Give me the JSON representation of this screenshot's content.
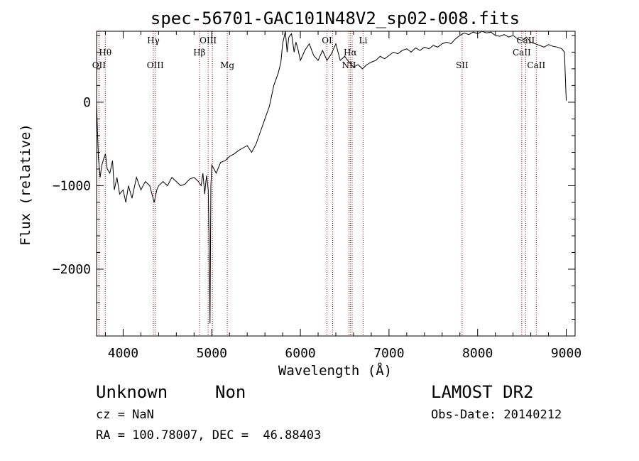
{
  "chart_data": {
    "type": "line",
    "title": "spec-56701-GAC101N48V2_sp02-008.fits",
    "xlabel": "Wavelength (Å)",
    "ylabel": "Flux (relative)",
    "xlim": [
      3700,
      9100
    ],
    "ylim": [
      -2800,
      850
    ],
    "xticks": [
      4000,
      5000,
      6000,
      7000,
      8000,
      9000
    ],
    "yticks": [
      -2000,
      -1000,
      0
    ],
    "ytick_labels": [
      "−2000",
      "−1000",
      "0"
    ],
    "grid": false,
    "series": [
      {
        "x": [
          3700,
          3720,
          3740,
          3760,
          3780,
          3800,
          3820,
          3850,
          3880,
          3900,
          3930,
          3960,
          4000,
          4030,
          4060,
          4100,
          4150,
          4200,
          4250,
          4300,
          4350,
          4380,
          4400,
          4450,
          4500,
          4550,
          4600,
          4650,
          4700,
          4750,
          4800,
          4850,
          4880,
          4900,
          4920,
          4940,
          4950,
          4960,
          4970,
          4980,
          4990,
          5000,
          5050,
          5100,
          5150,
          5200,
          5250,
          5300,
          5350,
          5400,
          5450,
          5500,
          5550,
          5600,
          5650,
          5700,
          5750,
          5780,
          5800,
          5830,
          5850,
          5870,
          5900,
          5930,
          5950,
          5970,
          6000,
          6050,
          6100,
          6150,
          6200,
          6250,
          6300,
          6350,
          6400,
          6450,
          6500,
          6550,
          6600,
          6650,
          6700,
          6750,
          6800,
          6850,
          6900,
          6950,
          7000,
          7050,
          7100,
          7150,
          7200,
          7250,
          7300,
          7350,
          7400,
          7450,
          7500,
          7550,
          7600,
          7650,
          7700,
          7750,
          7800,
          7850,
          7900,
          7950,
          8000,
          8050,
          8100,
          8150,
          8200,
          8250,
          8300,
          8350,
          8400,
          8450,
          8500,
          8550,
          8600,
          8650,
          8700,
          8750,
          8800,
          8850,
          8900,
          8950,
          8980,
          9000
        ],
        "y": [
          -10,
          -650,
          -900,
          -750,
          -680,
          -620,
          -800,
          -850,
          -700,
          -1050,
          -900,
          -1100,
          -1050,
          -1200,
          -1000,
          -1150,
          -900,
          -1050,
          -950,
          -1000,
          -1200,
          -1050,
          -1000,
          -950,
          -1000,
          -900,
          -950,
          -1000,
          -980,
          -920,
          -900,
          -950,
          -1000,
          -850,
          -1100,
          -880,
          -950,
          -1050,
          -1700,
          -2650,
          -1000,
          -750,
          -850,
          -720,
          -700,
          -650,
          -620,
          -580,
          -550,
          -520,
          -600,
          -500,
          -350,
          -200,
          -50,
          200,
          350,
          480,
          700,
          850,
          600,
          780,
          820,
          600,
          720,
          650,
          500,
          620,
          700,
          560,
          500,
          620,
          500,
          580,
          700,
          500,
          550,
          480,
          420,
          450,
          400,
          450,
          480,
          500,
          550,
          520,
          560,
          600,
          580,
          620,
          640,
          600,
          650,
          620,
          660,
          640,
          680,
          660,
          700,
          720,
          700,
          760,
          800,
          830,
          810,
          840,
          820,
          850,
          830,
          840,
          800,
          790,
          810,
          780,
          800,
          760,
          740,
          780,
          720,
          700,
          680,
          660,
          690,
          670,
          660,
          640,
          600,
          20
        ]
      }
    ],
    "annotations": [
      {
        "label": "OII",
        "wavelength": 3727,
        "row": "lower"
      },
      {
        "label": "Hθ",
        "wavelength": 3798,
        "row": "upper"
      },
      {
        "label": "OIII",
        "wavelength": 4363,
        "row": "lower"
      },
      {
        "label": "Hγ",
        "wavelength": 4341,
        "row": "top"
      },
      {
        "label": "Hβ",
        "wavelength": 4861,
        "row": "upper"
      },
      {
        "label": "OIII",
        "wavelength": 4959,
        "row": "top"
      },
      {
        "label": "OIII",
        "wavelength": 5007,
        "row": "none"
      },
      {
        "label": "Mg",
        "wavelength": 5175,
        "row": "lower"
      },
      {
        "label": "OI",
        "wavelength": 6300,
        "row": "top"
      },
      {
        "label": "OI",
        "wavelength": 6364,
        "row": "none"
      },
      {
        "label": "NII",
        "wavelength": 6548,
        "row": "lower"
      },
      {
        "label": "Hα",
        "wavelength": 6563,
        "row": "upper"
      },
      {
        "label": "NII",
        "wavelength": 6584,
        "row": "none"
      },
      {
        "label": "Li",
        "wavelength": 6708,
        "row": "top"
      },
      {
        "label": "SII",
        "wavelength": 7825,
        "row": "lower"
      },
      {
        "label": "CaII",
        "wavelength": 8498,
        "row": "upper"
      },
      {
        "label": "CaII",
        "wavelength": 8542,
        "row": "top"
      },
      {
        "label": "CaII",
        "wavelength": 8662,
        "row": "lower"
      }
    ],
    "line_color": "#000000",
    "annotation_line_color": "#a00000"
  },
  "info": {
    "class_label": "Unknown",
    "subclass_label": "Non",
    "cz": "cz = NaN",
    "radec": "RA = 100.78007, DEC =  46.88403",
    "survey": "LAMOST DR2",
    "obs_date": "Obs-Date: 20140212"
  }
}
